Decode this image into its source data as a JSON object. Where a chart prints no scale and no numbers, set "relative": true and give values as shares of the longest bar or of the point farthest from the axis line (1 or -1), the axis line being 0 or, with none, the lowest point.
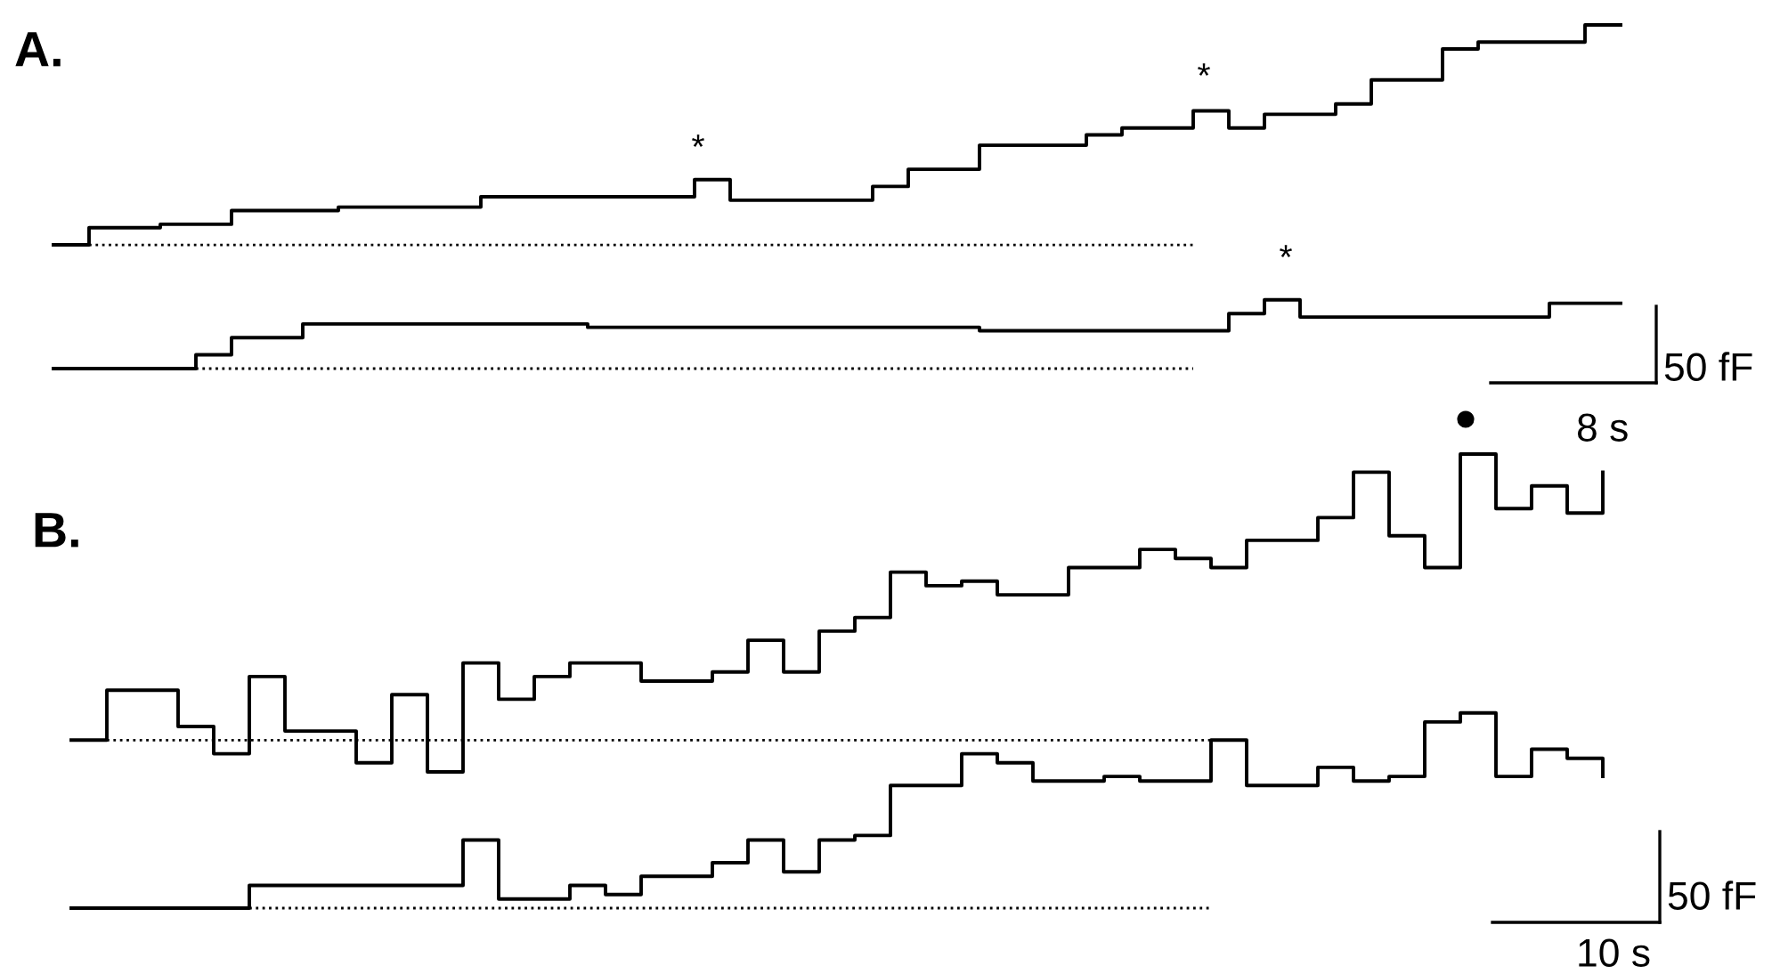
{
  "chart_data": [
    {
      "type": "step",
      "title": "A.",
      "relative": true,
      "categories": [
        null,
        null,
        null,
        null,
        null,
        null,
        null,
        null,
        null,
        null,
        null,
        null,
        null,
        null,
        null,
        null,
        null,
        null,
        null,
        null,
        null,
        null,
        null,
        null,
        null,
        null,
        null,
        null,
        null,
        null,
        null,
        null,
        null,
        null,
        null,
        null,
        null,
        null,
        null,
        null,
        null,
        null,
        null,
        null,
        null
      ],
      "series": [
        {
          "color": "#000000",
          "line_style": "solid",
          "values": [
            0.36,
            0.41,
            0.41,
            0.42,
            0.42,
            0.46,
            0.46,
            0.46,
            0.47,
            0.47,
            0.47,
            0.47,
            0.5,
            0.5,
            0.5,
            0.5,
            0.5,
            0.5,
            0.55,
            0.49,
            0.49,
            0.49,
            0.49,
            0.53,
            0.58,
            0.58,
            0.65,
            0.65,
            0.65,
            0.68,
            0.7,
            0.7,
            0.75,
            0.7,
            0.74,
            0.74,
            0.77,
            0.84,
            0.84,
            0.93,
            0.95,
            0.95,
            0.95,
            1.0,
            1.0
          ]
        },
        {
          "color": "#000000",
          "line_style": "solid",
          "values": [
            0,
            0,
            0,
            0,
            0.04,
            0.09,
            0.09,
            0.13,
            0.13,
            0.13,
            0.13,
            0.13,
            0.13,
            0.13,
            0.13,
            0.12,
            0.12,
            0.12,
            0.12,
            0.12,
            0.12,
            0.12,
            0.12,
            0.12,
            0.12,
            0.12,
            0.11,
            0.11,
            0.11,
            0.11,
            0.11,
            0.11,
            0.11,
            0.16,
            0.2,
            0.15,
            0.15,
            0.15,
            0.15,
            0.15,
            0.15,
            0.15,
            0.19,
            0.19,
            0.19
          ]
        },
        {
          "type": "line",
          "color": "#000000",
          "line_style": "dotted",
          "values": [
            null,
            0.36,
            0.36,
            0.36,
            0.36,
            0.36,
            0.36,
            0.36,
            0.36,
            0.36,
            0.36,
            0.36,
            0.36,
            0.36,
            0.36,
            0.36,
            0.36,
            0.36,
            0.36,
            0.36,
            0.36,
            0.36,
            0.36,
            0.36,
            0.36,
            0.36,
            0.36,
            0.36,
            0.36,
            0.36,
            0.36,
            0.36,
            0.36,
            null,
            null,
            null,
            null,
            null,
            null,
            null,
            null,
            null,
            null,
            null,
            null
          ]
        },
        {
          "type": "line",
          "color": "#000000",
          "line_style": "dotted",
          "values": [
            null,
            null,
            null,
            null,
            0,
            0,
            0,
            0,
            0,
            0,
            0,
            0,
            0,
            0,
            0,
            0,
            0,
            0,
            0,
            0,
            0,
            0,
            0,
            0,
            0,
            0,
            0,
            0,
            0,
            0,
            0,
            0,
            0,
            null,
            null,
            null,
            null,
            null,
            null,
            null,
            null,
            null,
            null,
            null,
            null
          ]
        }
      ],
      "annotations": [
        "*",
        "*",
        "*",
        "50 fF",
        "8 s",
        "●"
      ]
    },
    {
      "type": "step",
      "title": "B.",
      "relative": true,
      "categories": [
        null,
        null,
        null,
        null,
        null,
        null,
        null,
        null,
        null,
        null,
        null,
        null,
        null,
        null,
        null,
        null,
        null,
        null,
        null,
        null,
        null,
        null,
        null,
        null,
        null,
        null,
        null,
        null,
        null,
        null,
        null,
        null,
        null,
        null,
        null,
        null,
        null,
        null,
        null,
        null,
        null,
        null,
        null,
        null
      ],
      "series": [
        {
          "color": "#000000",
          "line_style": "solid",
          "values": [
            0.37,
            0.48,
            0.48,
            0.4,
            0.34,
            0.51,
            0.39,
            0.39,
            0.32,
            0.47,
            0.3,
            0.54,
            0.46,
            0.51,
            0.54,
            0.54,
            0.5,
            0.5,
            0.52,
            0.59,
            0.52,
            0.61,
            0.64,
            0.74,
            0.71,
            0.72,
            0.69,
            0.69,
            0.75,
            0.75,
            0.79,
            0.77,
            0.75,
            0.81,
            0.81,
            0.86,
            0.96,
            0.82,
            0.75,
            1.0,
            0.88,
            0.93,
            0.87,
            0.96
          ]
        },
        {
          "color": "#000000",
          "line_style": "solid",
          "values": [
            0,
            0,
            0,
            0,
            0,
            0.05,
            0.05,
            0.05,
            0.05,
            0.05,
            0.05,
            0.15,
            0.02,
            0.02,
            0.05,
            0.03,
            0.07,
            0.07,
            0.1,
            0.15,
            0.08,
            0.15,
            0.16,
            0.27,
            0.27,
            0.34,
            0.32,
            0.28,
            0.28,
            0.29,
            0.28,
            0.28,
            0.37,
            0.27,
            0.27,
            0.31,
            0.28,
            0.29,
            0.41,
            0.43,
            0.29,
            0.35,
            0.33,
            0.29
          ]
        },
        {
          "type": "line",
          "color": "#000000",
          "line_style": "dotted",
          "values": [
            null,
            0.37,
            0.37,
            0.37,
            0.37,
            0.37,
            0.37,
            0.37,
            0.37,
            0.37,
            0.37,
            0.37,
            0.37,
            0.37,
            0.37,
            0.37,
            0.37,
            0.37,
            0.37,
            0.37,
            0.37,
            0.37,
            0.37,
            0.37,
            0.37,
            0.37,
            0.37,
            0.37,
            0.37,
            0.37,
            0.37,
            0.37,
            0.37,
            null,
            null,
            null,
            null,
            null,
            null,
            null,
            null,
            null,
            null,
            null
          ]
        },
        {
          "type": "line",
          "color": "#000000",
          "line_style": "dotted",
          "values": [
            null,
            null,
            null,
            null,
            null,
            0,
            0,
            0,
            0,
            0,
            0,
            0,
            0,
            0,
            0,
            0,
            0,
            0,
            0,
            0,
            0,
            0,
            0,
            0,
            0,
            0,
            0,
            0,
            0,
            0,
            0,
            0,
            0,
            null,
            null,
            null,
            null,
            null,
            null,
            null,
            null,
            null,
            null,
            null
          ]
        }
      ],
      "annotations": [
        "50 fF",
        "10 s"
      ]
    }
  ]
}
